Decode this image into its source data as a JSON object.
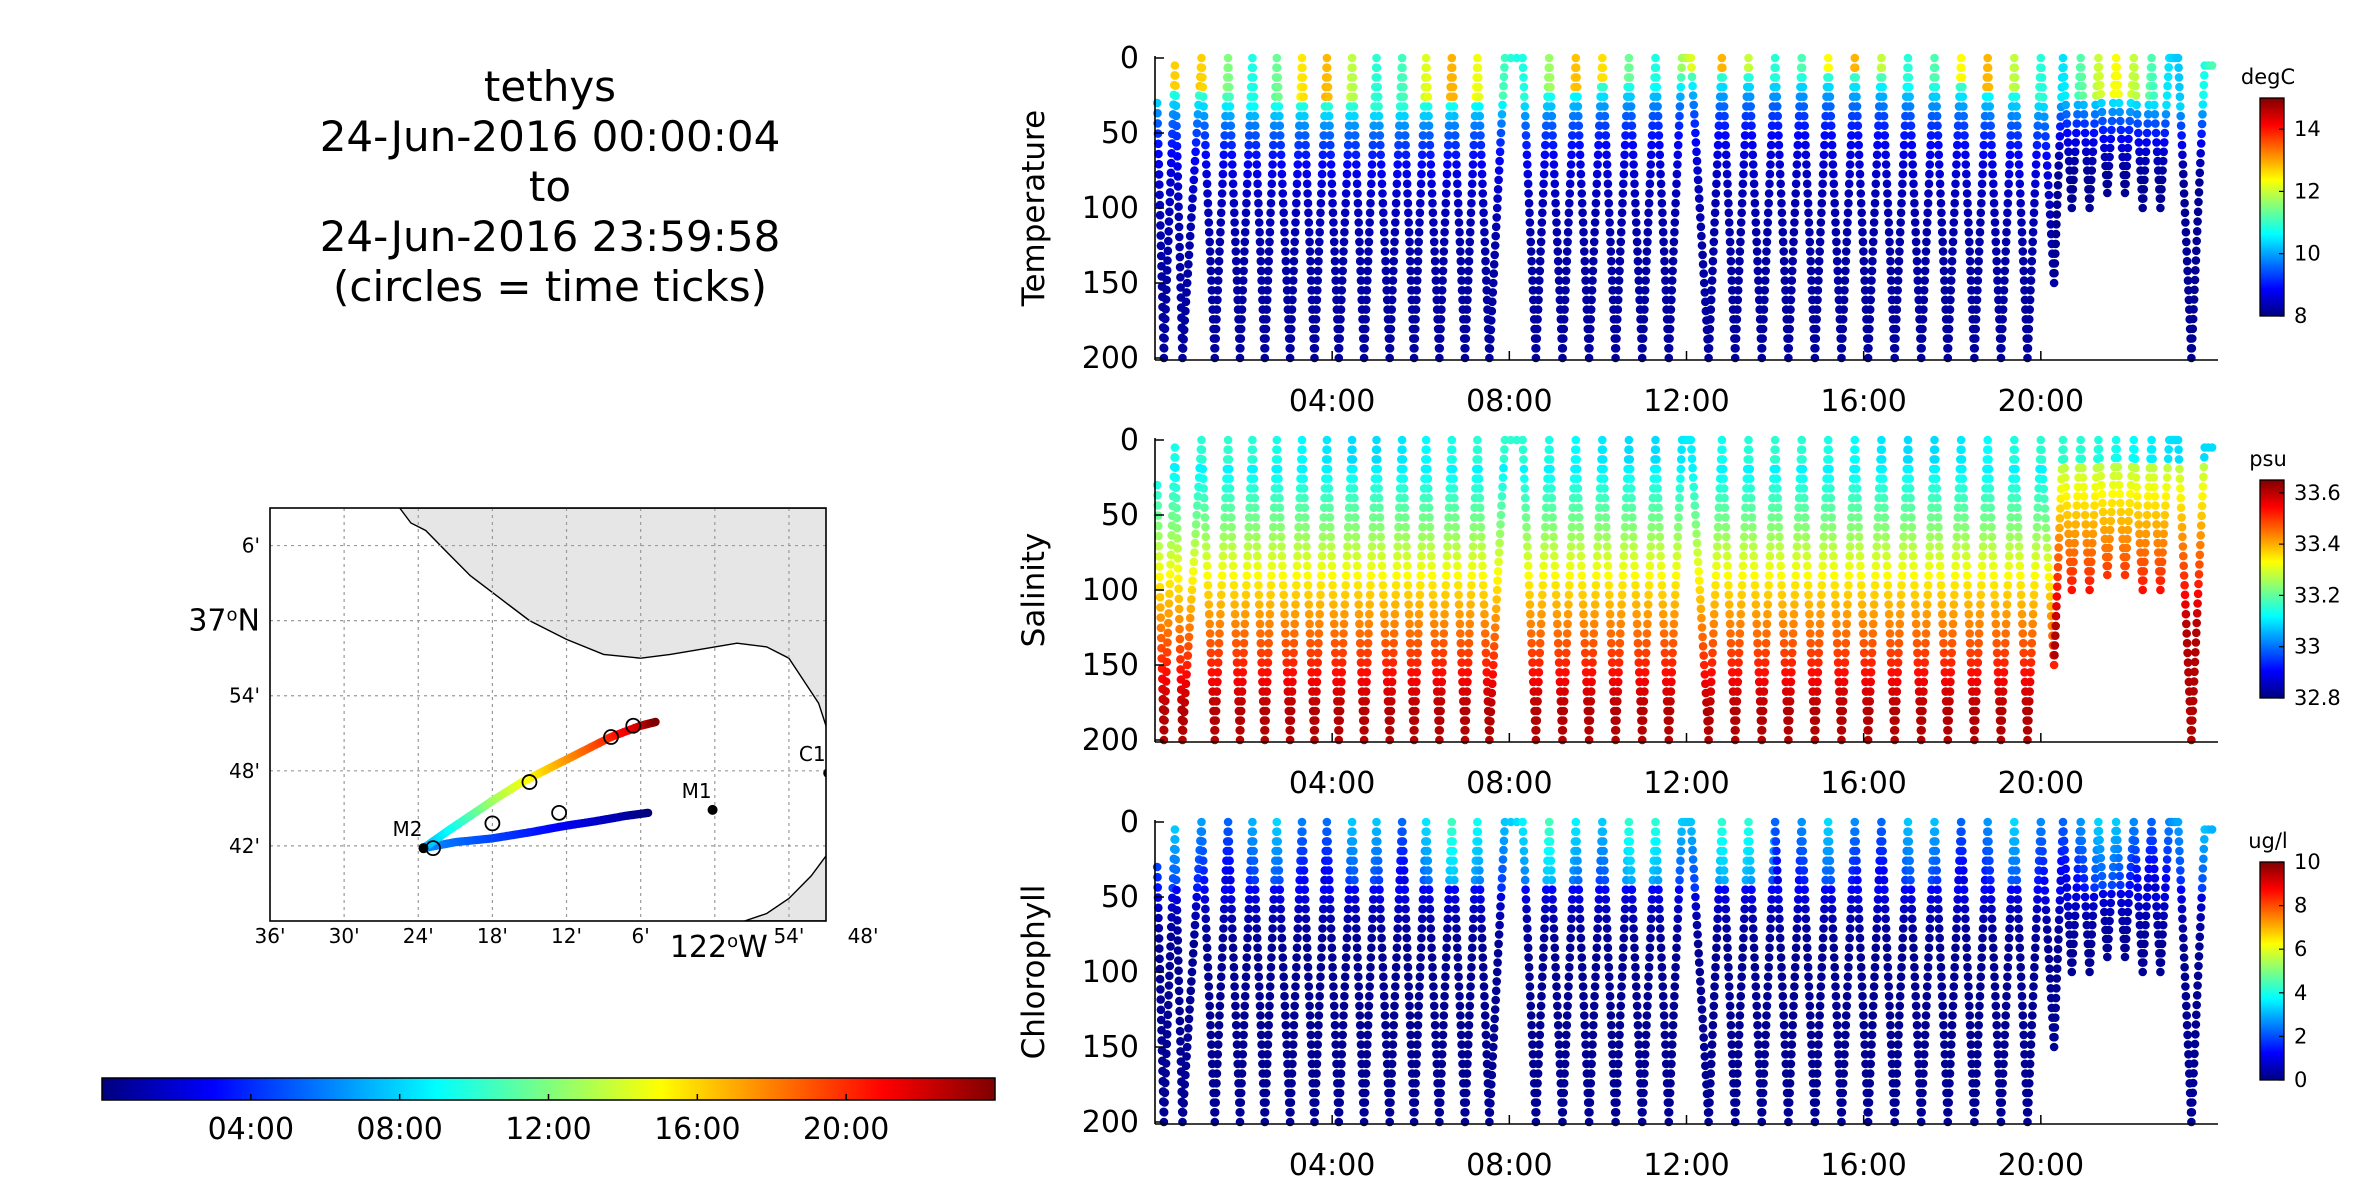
{
  "title": {
    "lines": [
      "tethys",
      "24-Jun-2016 00:00:04",
      "to",
      "24-Jun-2016 23:59:58",
      "(circles = time ticks)"
    ]
  },
  "colors": {
    "jet": [
      "#00007f",
      "#0000ff",
      "#007fff",
      "#00ffff",
      "#7fff7f",
      "#ffff00",
      "#ff7f00",
      "#ff0000",
      "#7f0000"
    ],
    "land": "#e6e6e6",
    "grid": "#9a9a9a"
  },
  "map": {
    "lon_labels": [
      "36'",
      "30'",
      "24'",
      "18'",
      "12'",
      "6'",
      "122°W",
      "54'",
      "48'"
    ],
    "lon_values": [
      -122.6,
      -122.5,
      -122.4,
      -122.3,
      -122.2,
      -122.1,
      -122.0,
      -121.9,
      -121.8
    ],
    "lat_labels": [
      "6'",
      "37°N",
      "54'",
      "48'",
      "42'"
    ],
    "lat_values": [
      37.1,
      37.0,
      36.9,
      36.8,
      36.7
    ],
    "xlim": [
      -122.6,
      -121.85
    ],
    "ylim": [
      36.6,
      37.15
    ],
    "stations": [
      {
        "name": "C1",
        "lon": -121.847,
        "lat": 36.797
      },
      {
        "name": "M1",
        "lon": -122.003,
        "lat": 36.748
      },
      {
        "name": "M2",
        "lon": -122.393,
        "lat": 36.697
      }
    ]
  },
  "time_colorbar": {
    "tick_labels": [
      "04:00",
      "08:00",
      "12:00",
      "16:00",
      "20:00"
    ],
    "tick_hours": [
      4,
      8,
      12,
      16,
      20
    ],
    "range_hours": [
      0,
      24
    ]
  },
  "chart_data": [
    {
      "type": "scatter",
      "name": "Temperature",
      "ylabel": "Temperature",
      "units": "degC",
      "x_tick_labels": [
        "04:00",
        "08:00",
        "12:00",
        "16:00",
        "20:00"
      ],
      "x_tick_hours": [
        4,
        8,
        12,
        16,
        20
      ],
      "y_tick_labels": [
        "0",
        "50",
        "100",
        "150",
        "200"
      ],
      "xlim": [
        0,
        24
      ],
      "ylim": [
        200,
        0
      ],
      "clim": [
        8,
        15
      ],
      "colorbar_ticks": [
        "8",
        "10",
        "12",
        "14"
      ],
      "colorbar_values": [
        8,
        10,
        12,
        14
      ]
    },
    {
      "type": "scatter",
      "name": "Salinity",
      "ylabel": "Salinity",
      "units": "psu",
      "x_tick_labels": [
        "04:00",
        "08:00",
        "12:00",
        "16:00",
        "20:00"
      ],
      "x_tick_hours": [
        4,
        8,
        12,
        16,
        20
      ],
      "y_tick_labels": [
        "0",
        "50",
        "100",
        "150",
        "200"
      ],
      "xlim": [
        0,
        24
      ],
      "ylim": [
        200,
        0
      ],
      "clim": [
        32.8,
        33.65
      ],
      "colorbar_ticks": [
        "32.8",
        "33",
        "33.2",
        "33.4",
        "33.6"
      ],
      "colorbar_values": [
        32.8,
        33.0,
        33.2,
        33.4,
        33.6
      ]
    },
    {
      "type": "scatter",
      "name": "Chlorophyll",
      "ylabel": "Chlorophyll",
      "units": "ug/l",
      "x_tick_labels": [
        "04:00",
        "08:00",
        "12:00",
        "16:00",
        "20:00"
      ],
      "x_tick_hours": [
        4,
        8,
        12,
        16,
        20
      ],
      "y_tick_labels": [
        "0",
        "50",
        "100",
        "150",
        "200"
      ],
      "xlim": [
        0,
        24
      ],
      "ylim": [
        200,
        0
      ],
      "clim": [
        0,
        10
      ],
      "colorbar_ticks": [
        "0",
        "2",
        "4",
        "6",
        "8",
        "10"
      ],
      "colorbar_values": [
        0,
        2,
        4,
        6,
        8,
        10
      ]
    }
  ],
  "profiles": {
    "turnaround_hours": [
      0.05,
      0.2,
      0.45,
      0.62,
      1.05,
      1.35,
      1.65,
      1.92,
      2.2,
      2.48,
      2.75,
      3.05,
      3.32,
      3.6,
      3.88,
      4.15,
      4.45,
      4.72,
      5.0,
      5.3,
      5.58,
      5.85,
      6.12,
      6.42,
      6.7,
      7.0,
      7.28,
      7.55,
      7.9,
      8.3,
      8.6,
      8.9,
      9.2,
      9.5,
      9.8,
      10.1,
      10.4,
      10.7,
      11.0,
      11.3,
      11.6,
      11.9,
      12.1,
      12.5,
      12.8,
      13.1,
      13.4,
      13.7,
      14.0,
      14.3,
      14.6,
      14.9,
      15.2,
      15.5,
      15.8,
      16.1,
      16.4,
      16.7,
      17.0,
      17.3,
      17.6,
      17.9,
      18.2,
      18.5,
      18.8,
      19.1,
      19.4,
      19.7,
      20.0,
      20.3,
      20.5,
      20.7,
      20.9,
      21.1,
      21.3,
      21.5,
      21.7,
      21.9,
      22.1,
      22.3,
      22.5,
      22.7,
      22.9,
      23.1,
      23.4,
      23.7,
      23.95
    ],
    "turnaround_depths": [
      30,
      200,
      5,
      200,
      0,
      200,
      0,
      200,
      0,
      200,
      0,
      200,
      0,
      200,
      0,
      200,
      0,
      200,
      0,
      200,
      0,
      200,
      0,
      200,
      0,
      200,
      0,
      200,
      0,
      0,
      200,
      0,
      200,
      0,
      200,
      0,
      200,
      0,
      200,
      0,
      200,
      0,
      0,
      200,
      0,
      200,
      0,
      200,
      0,
      200,
      0,
      200,
      0,
      200,
      0,
      200,
      0,
      200,
      0,
      200,
      0,
      200,
      0,
      200,
      0,
      200,
      0,
      200,
      0,
      150,
      0,
      100,
      0,
      100,
      0,
      90,
      0,
      90,
      0,
      100,
      0,
      100,
      0,
      0,
      200,
      5,
      5
    ]
  }
}
